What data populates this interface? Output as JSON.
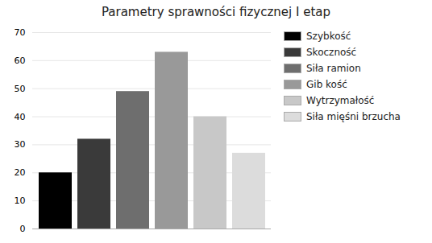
{
  "chart_data": {
    "type": "bar",
    "title": "Parametry sprawności fizycznej I etap",
    "categories": [
      "Szybkość",
      "Skoczność",
      "Siła ramion",
      "Gib kość",
      "Wytrzymałość",
      "Siła mięśni brzucha"
    ],
    "values": [
      20,
      32,
      49,
      63,
      40,
      27
    ],
    "colors": [
      "#000000",
      "#3a3a3a",
      "#6e6e6e",
      "#999999",
      "#c8c8c8",
      "#dcdcdc"
    ],
    "ylim": [
      0,
      70
    ],
    "yticks": [
      0,
      10,
      20,
      30,
      40,
      50,
      60,
      70
    ],
    "grid": true,
    "legend": "right",
    "tick_labels": "y"
  }
}
